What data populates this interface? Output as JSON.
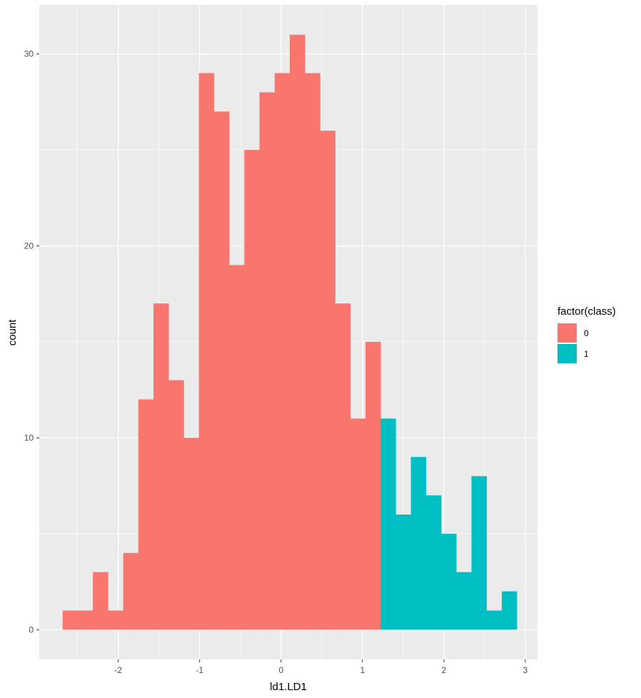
{
  "chart_data": {
    "type": "bar",
    "subtype": "histogram",
    "xlabel": "ld1.LD1",
    "ylabel": "count",
    "xlim": [
      -2.97,
      3.15
    ],
    "ylim": [
      -1.55,
      32.55
    ],
    "x_ticks": [
      -2,
      -1,
      0,
      1,
      2,
      3
    ],
    "x_tick_labels": [
      "-2",
      "-1",
      "0",
      "1",
      "2",
      "3"
    ],
    "y_ticks": [
      0,
      10,
      20,
      30
    ],
    "y_tick_labels": [
      "0",
      "10",
      "20",
      "30"
    ],
    "bin_width": 0.186,
    "legend": {
      "title": "factor(class)",
      "position": "right",
      "items": [
        {
          "label": "0",
          "color": "#F8766D"
        },
        {
          "label": "1",
          "color": "#00BFC4"
        }
      ]
    },
    "series": [
      {
        "name": "0",
        "color": "#F8766D",
        "bins": [
          {
            "x0": -2.683,
            "x1": -2.497,
            "count": 1
          },
          {
            "x0": -2.497,
            "x1": -2.311,
            "count": 1
          },
          {
            "x0": -2.311,
            "x1": -2.125,
            "count": 3
          },
          {
            "x0": -2.125,
            "x1": -1.939,
            "count": 1
          },
          {
            "x0": -1.939,
            "x1": -1.753,
            "count": 4
          },
          {
            "x0": -1.753,
            "x1": -1.567,
            "count": 12
          },
          {
            "x0": -1.567,
            "x1": -1.381,
            "count": 17
          },
          {
            "x0": -1.381,
            "x1": -1.195,
            "count": 13
          },
          {
            "x0": -1.195,
            "x1": -1.009,
            "count": 10
          },
          {
            "x0": -1.009,
            "x1": -0.823,
            "count": 29
          },
          {
            "x0": -0.823,
            "x1": -0.637,
            "count": 27
          },
          {
            "x0": -0.637,
            "x1": -0.451,
            "count": 19
          },
          {
            "x0": -0.451,
            "x1": -0.265,
            "count": 25
          },
          {
            "x0": -0.265,
            "x1": -0.079,
            "count": 28
          },
          {
            "x0": -0.079,
            "x1": 0.107,
            "count": 29
          },
          {
            "x0": 0.107,
            "x1": 0.293,
            "count": 31
          },
          {
            "x0": 0.293,
            "x1": 0.479,
            "count": 29
          },
          {
            "x0": 0.479,
            "x1": 0.665,
            "count": 26
          },
          {
            "x0": 0.665,
            "x1": 0.851,
            "count": 17
          },
          {
            "x0": 0.851,
            "x1": 1.037,
            "count": 11
          },
          {
            "x0": 1.037,
            "x1": 1.223,
            "count": 15
          }
        ]
      },
      {
        "name": "1",
        "color": "#00BFC4",
        "bins": [
          {
            "x0": 1.223,
            "x1": 1.409,
            "count": 11
          },
          {
            "x0": 1.409,
            "x1": 1.595,
            "count": 6
          },
          {
            "x0": 1.595,
            "x1": 1.781,
            "count": 9
          },
          {
            "x0": 1.781,
            "x1": 1.967,
            "count": 7
          },
          {
            "x0": 1.967,
            "x1": 2.153,
            "count": 5
          },
          {
            "x0": 2.153,
            "x1": 2.339,
            "count": 3
          },
          {
            "x0": 2.339,
            "x1": 2.525,
            "count": 8
          },
          {
            "x0": 2.525,
            "x1": 2.711,
            "count": 1
          },
          {
            "x0": 2.711,
            "x1": 2.897,
            "count": 2
          }
        ]
      }
    ],
    "panel_background": "#EBEBEB",
    "grid": true,
    "grid_color": "#FFFFFF"
  }
}
